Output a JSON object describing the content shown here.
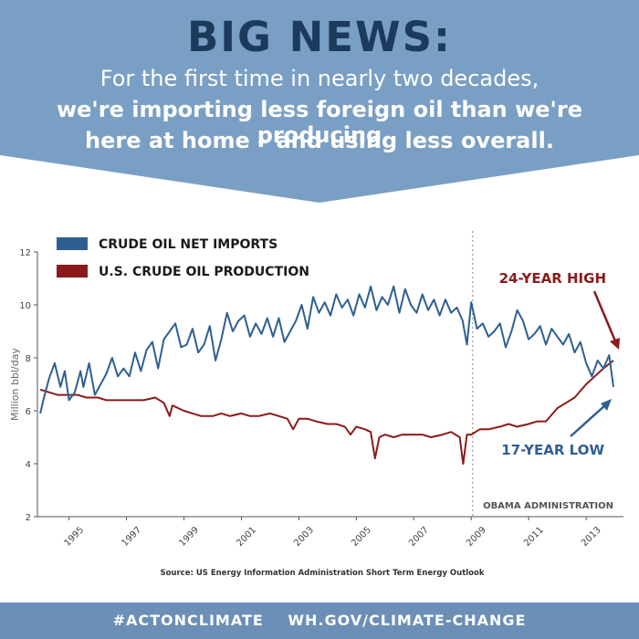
{
  "header": {
    "headline": "BIG NEWS:",
    "line1": "For the first time in nearly two decades,",
    "line2": "we're importing less foreign oil than we're producing",
    "line3": "here at home – and using less overall.",
    "bg_color": "#7a9fc4",
    "headline_color": "#1b3a5c"
  },
  "chart_data": {
    "type": "line",
    "title": "",
    "xlabel": "",
    "ylabel": "Million bbl/day",
    "xlim": [
      1993.9,
      2014.3
    ],
    "ylim": [
      2,
      12
    ],
    "yticks": [
      2,
      4,
      6,
      8,
      10,
      12
    ],
    "xticks": [
      "1995",
      "1997",
      "1999",
      "2001",
      "2003",
      "2005",
      "2007",
      "2009",
      "2011",
      "2013"
    ],
    "grid": false,
    "legend_position": "top-left",
    "series": [
      {
        "name": "CRUDE OIL NET IMPORTS",
        "color": "#2e5f93",
        "x": [
          1994.0,
          1994.15,
          1994.3,
          1994.5,
          1994.7,
          1994.85,
          1995.0,
          1995.2,
          1995.4,
          1995.5,
          1995.7,
          1995.9,
          1996.1,
          1996.3,
          1996.5,
          1996.7,
          1996.9,
          1997.1,
          1997.3,
          1997.5,
          1997.7,
          1997.9,
          1998.1,
          1998.3,
          1998.5,
          1998.7,
          1998.9,
          1999.1,
          1999.3,
          1999.5,
          1999.7,
          1999.9,
          2000.1,
          2000.3,
          2000.5,
          2000.7,
          2000.9,
          2001.1,
          2001.3,
          2001.5,
          2001.7,
          2001.9,
          2002.1,
          2002.3,
          2002.5,
          2002.7,
          2002.9,
          2003.1,
          2003.3,
          2003.5,
          2003.7,
          2003.9,
          2004.1,
          2004.3,
          2004.5,
          2004.7,
          2004.9,
          2005.1,
          2005.3,
          2005.5,
          2005.7,
          2005.9,
          2006.1,
          2006.3,
          2006.5,
          2006.7,
          2006.9,
          2007.1,
          2007.3,
          2007.5,
          2007.7,
          2007.9,
          2008.1,
          2008.3,
          2008.5,
          2008.7,
          2008.85,
          2009.0,
          2009.2,
          2009.4,
          2009.6,
          2009.8,
          2010.0,
          2010.2,
          2010.4,
          2010.6,
          2010.8,
          2011.0,
          2011.2,
          2011.4,
          2011.6,
          2011.8,
          2012.0,
          2012.2,
          2012.4,
          2012.6,
          2012.8,
          2013.0,
          2013.2,
          2013.4,
          2013.6,
          2013.8,
          2013.95
        ],
        "values": [
          5.9,
          6.6,
          7.2,
          7.8,
          6.9,
          7.5,
          6.4,
          6.7,
          7.5,
          6.9,
          7.8,
          6.6,
          7.0,
          7.4,
          8.0,
          7.3,
          7.6,
          7.3,
          8.2,
          7.5,
          8.3,
          8.6,
          7.6,
          8.7,
          9.0,
          9.3,
          8.4,
          8.5,
          9.1,
          8.2,
          8.5,
          9.2,
          7.9,
          8.7,
          9.7,
          9.0,
          9.4,
          9.6,
          8.8,
          9.3,
          8.9,
          9.5,
          8.8,
          9.5,
          8.6,
          9.0,
          9.4,
          10.0,
          9.1,
          10.3,
          9.7,
          10.1,
          9.6,
          10.4,
          9.9,
          10.2,
          9.6,
          10.4,
          9.9,
          10.7,
          9.8,
          10.3,
          10.0,
          10.7,
          9.7,
          10.6,
          10.0,
          9.7,
          10.4,
          9.8,
          10.2,
          9.6,
          10.2,
          9.7,
          9.9,
          9.4,
          8.5,
          10.1,
          9.1,
          9.3,
          8.8,
          9.0,
          9.3,
          8.4,
          9.0,
          9.8,
          9.4,
          8.7,
          8.9,
          9.2,
          8.5,
          9.1,
          8.8,
          8.5,
          8.9,
          8.2,
          8.6,
          7.8,
          7.3,
          7.9,
          7.6,
          8.1,
          6.9
        ],
        "label": "17-YEAR LOW",
        "label_color": "#2e5f93"
      },
      {
        "name": "U.S. CRUDE OIL PRODUCTION",
        "color": "#8c1a1a",
        "x": [
          1994.0,
          1994.3,
          1994.6,
          1995.0,
          1995.3,
          1995.6,
          1996.0,
          1996.3,
          1996.6,
          1997.0,
          1997.3,
          1997.6,
          1998.0,
          1998.3,
          1998.5,
          1998.6,
          1999.0,
          1999.3,
          1999.6,
          2000.0,
          2000.3,
          2000.6,
          2001.0,
          2001.3,
          2001.6,
          2002.0,
          2002.3,
          2002.6,
          2002.8,
          2003.0,
          2003.3,
          2003.6,
          2004.0,
          2004.3,
          2004.6,
          2004.8,
          2005.0,
          2005.3,
          2005.5,
          2005.65,
          2005.8,
          2006.0,
          2006.3,
          2006.6,
          2007.0,
          2007.3,
          2007.6,
          2008.0,
          2008.3,
          2008.6,
          2008.72,
          2008.85,
          2009.0,
          2009.3,
          2009.6,
          2010.0,
          2010.3,
          2010.6,
          2011.0,
          2011.3,
          2011.6,
          2012.0,
          2012.3,
          2012.6,
          2013.0,
          2013.3,
          2013.6,
          2013.95
        ],
        "values": [
          6.8,
          6.7,
          6.6,
          6.6,
          6.6,
          6.5,
          6.5,
          6.4,
          6.4,
          6.4,
          6.4,
          6.4,
          6.5,
          6.3,
          5.8,
          6.2,
          6.0,
          5.9,
          5.8,
          5.8,
          5.9,
          5.8,
          5.9,
          5.8,
          5.8,
          5.9,
          5.8,
          5.7,
          5.3,
          5.7,
          5.7,
          5.6,
          5.5,
          5.5,
          5.4,
          5.1,
          5.4,
          5.3,
          5.2,
          4.2,
          5.0,
          5.1,
          5.0,
          5.1,
          5.1,
          5.1,
          5.0,
          5.1,
          5.2,
          5.0,
          4.0,
          5.1,
          5.1,
          5.3,
          5.3,
          5.4,
          5.5,
          5.4,
          5.5,
          5.6,
          5.6,
          6.1,
          6.3,
          6.5,
          7.0,
          7.3,
          7.6,
          7.9
        ],
        "label": "24-YEAR HIGH",
        "label_color": "#8c1a1a"
      }
    ],
    "annotations": {
      "obama_marker_x": 2009.05,
      "obama_label": "OBAMA ADMINISTRATION"
    }
  },
  "source": "Source: US Energy Information Administration Short Term Energy Outlook",
  "footer": {
    "hashtag": "#ACTONCLIMATE",
    "url": "WH.GOV/CLIMATE-CHANGE"
  }
}
